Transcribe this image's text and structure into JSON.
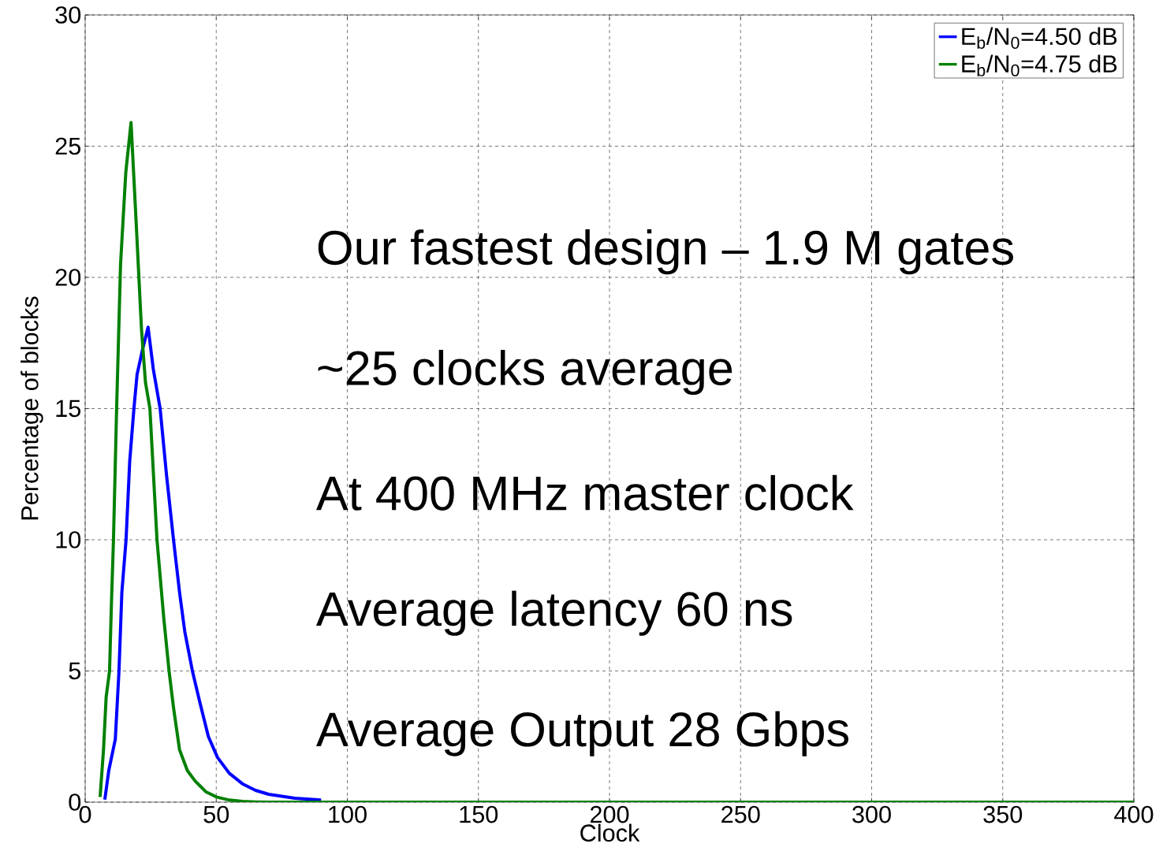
{
  "chart_data": {
    "type": "line",
    "xlabel": "Clock",
    "ylabel": "Percentage of blocks",
    "xlim": [
      0,
      400
    ],
    "ylim": [
      0,
      30
    ],
    "xticks": [
      0,
      50,
      100,
      150,
      200,
      250,
      300,
      350,
      400
    ],
    "yticks": [
      0,
      5,
      10,
      15,
      20,
      25,
      30
    ],
    "grid": true,
    "legend": "top right",
    "line_style": "solid",
    "marker": "none",
    "annotations": [
      "Our fastest design – 1.9 M gates",
      "~25 clocks average",
      "At 400 MHz master clock",
      "Average latency 60 ns",
      "Average Output 28 Gbps"
    ],
    "series": [
      {
        "name": "E$_{b}$/N$_{0}$=4.50 dB",
        "color": "#0000ff",
        "x": [
          7.5,
          9,
          11.5,
          12.9,
          14,
          15.6,
          17,
          18.6,
          19.8,
          22,
          24,
          26,
          28.6,
          31,
          33.7,
          36,
          38,
          40.9,
          44,
          47,
          50.5,
          55,
          60,
          65,
          70,
          80,
          90
        ],
        "values": [
          0.1,
          1.2,
          2.4,
          5,
          8,
          10,
          13,
          15,
          16.3,
          17.3,
          18.1,
          16.5,
          15,
          12.5,
          10,
          8,
          6.5,
          5,
          3.7,
          2.5,
          1.7,
          1.1,
          0.7,
          0.45,
          0.3,
          0.15,
          0.08
        ]
      },
      {
        "name": "E$_{b}$/N$_{0}$=4.75 dB",
        "color": "#008000",
        "x": [
          5.7,
          7,
          8,
          9.3,
          10,
          10.8,
          12,
          13.5,
          15.5,
          17.5,
          19.5,
          21.5,
          23,
          24.7,
          27.4,
          30,
          32,
          33.7,
          36,
          39,
          42,
          46,
          50,
          55,
          60,
          65,
          70,
          100,
          200,
          300,
          400
        ],
        "values": [
          0.2,
          2,
          4,
          5,
          7.5,
          10,
          15,
          20.5,
          24,
          25.9,
          22,
          18,
          16,
          15,
          10,
          7,
          5,
          3.6,
          2,
          1.2,
          0.8,
          0.4,
          0.2,
          0.08,
          0.03,
          0.01,
          0,
          0,
          0,
          0,
          0
        ]
      }
    ]
  }
}
